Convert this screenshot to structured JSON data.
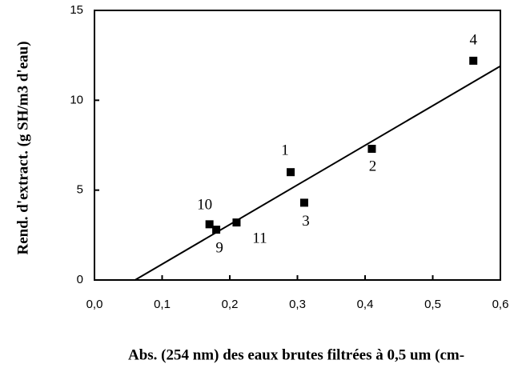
{
  "chart_data": {
    "type": "scatter",
    "x_label": "Abs. (254 nm) des eaux brutes filtrées à 0,5 um (cm-",
    "y_label": "Rend. d'extract. (g SH/m3 d'eau)",
    "x": [
      0.56,
      0.29,
      0.41,
      0.31,
      0.17,
      0.18,
      0.21
    ],
    "values": [
      12.2,
      6.0,
      7.3,
      4.3,
      3.1,
      2.8,
      3.2
    ],
    "labels": [
      "4",
      "1",
      "2",
      "3",
      "10",
      "9",
      "11"
    ],
    "color": "#000000",
    "trendline": {
      "x": [
        0.06,
        0.6
      ],
      "y": [
        0,
        11.9
      ]
    },
    "xlim": [
      0,
      0.6
    ],
    "xticks": [
      {
        "value": 0,
        "label": "0,0"
      },
      {
        "value": 0.1,
        "label": "0,1"
      },
      {
        "value": 0.2,
        "label": "0,2"
      },
      {
        "value": 0.3,
        "label": "0,3"
      },
      {
        "value": 0.4,
        "label": "0,4"
      },
      {
        "value": 0.5,
        "label": "0,5"
      },
      {
        "value": 0.6,
        "label": "0,6"
      }
    ],
    "ylim": [
      0,
      15
    ],
    "yticks": [
      0,
      5,
      10,
      15
    ]
  }
}
